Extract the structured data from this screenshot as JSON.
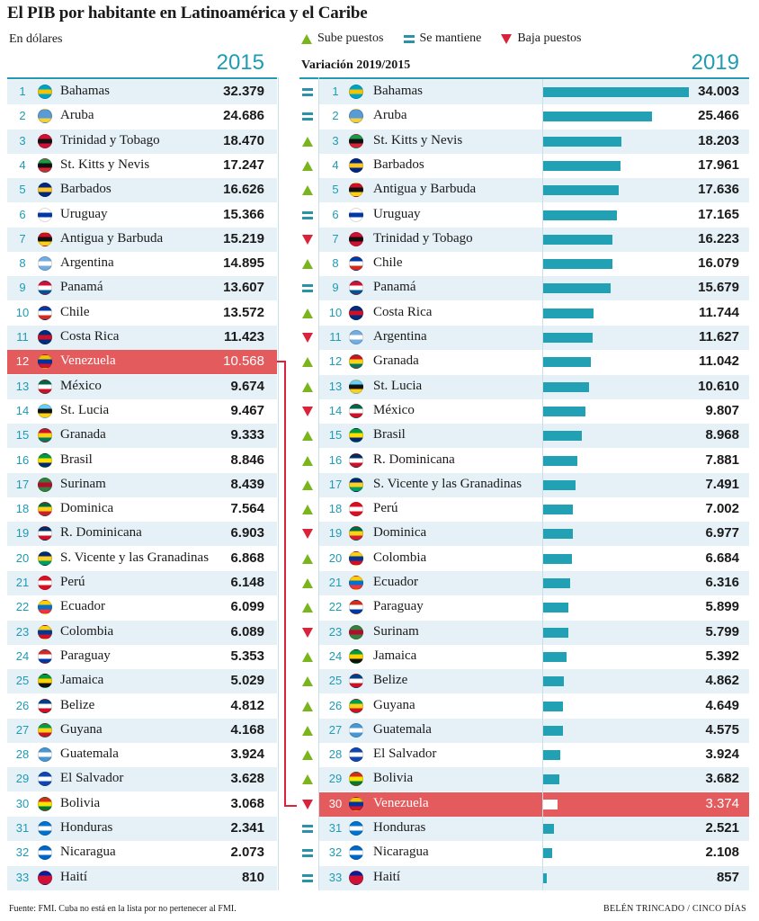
{
  "title": "El PIB por habitante en Latinoamérica y el Caribe",
  "unit": "En dólares",
  "legend": {
    "up": "Sube puestos",
    "same": "Se mantiene",
    "down": "Baja puestos"
  },
  "subhead": "Variación 2019/2015",
  "year_left": "2015",
  "year_right": "2019",
  "footer_left": "Fuente: FMI. Cuba no está en la lista por no pertenecer al FMI.",
  "footer_right": "BELÉN TRINCADO / CINCO DÍAS",
  "colors": {
    "accent": "#1f9bb3",
    "bar": "#22a1b4",
    "highlight": "#e45b5e",
    "up": "#7ab51d",
    "down": "#d8233b"
  },
  "chart_data": {
    "type": "table",
    "highlight_country": "Venezuela",
    "left": [
      {
        "rank": "1",
        "name": "Bahamas",
        "value": "32.379"
      },
      {
        "rank": "2",
        "name": "Aruba",
        "value": "24.686"
      },
      {
        "rank": "3",
        "name": "Trinidad y  Tobago",
        "value": "18.470"
      },
      {
        "rank": "4",
        "name": "St. Kitts y Nevis",
        "value": "17.247"
      },
      {
        "rank": "5",
        "name": "Barbados",
        "value": "16.626"
      },
      {
        "rank": "6",
        "name": "Uruguay",
        "value": "15.366"
      },
      {
        "rank": "7",
        "name": "Antigua y Barbuda",
        "value": "15.219"
      },
      {
        "rank": "8",
        "name": "Argentina",
        "value": "14.895"
      },
      {
        "rank": "9",
        "name": "Panamá",
        "value": "13.607"
      },
      {
        "rank": "10",
        "name": "Chile",
        "value": "13.572"
      },
      {
        "rank": "11",
        "name": "Costa Rica",
        "value": "11.423"
      },
      {
        "rank": "12",
        "name": "Venezuela",
        "value": "10.568"
      },
      {
        "rank": "13",
        "name": "México",
        "value": "9.674"
      },
      {
        "rank": "14",
        "name": "St. Lucia",
        "value": "9.467"
      },
      {
        "rank": "15",
        "name": "Granada",
        "value": "9.333"
      },
      {
        "rank": "16",
        "name": "Brasil",
        "value": "8.846"
      },
      {
        "rank": "17",
        "name": "Surinam",
        "value": "8.439"
      },
      {
        "rank": "18",
        "name": "Dominica",
        "value": "7.564"
      },
      {
        "rank": "19",
        "name": "R. Dominicana",
        "value": "6.903"
      },
      {
        "rank": "20",
        "name": "S. Vicente y las Granadinas",
        "value": "6.868"
      },
      {
        "rank": "21",
        "name": "Perú",
        "value": "6.148"
      },
      {
        "rank": "22",
        "name": "Ecuador",
        "value": "6.099"
      },
      {
        "rank": "23",
        "name": "Colombia",
        "value": "6.089"
      },
      {
        "rank": "24",
        "name": "Paraguay",
        "value": "5.353"
      },
      {
        "rank": "25",
        "name": "Jamaica",
        "value": "5.029"
      },
      {
        "rank": "26",
        "name": "Belize",
        "value": "4.812"
      },
      {
        "rank": "27",
        "name": "Guyana",
        "value": "4.168"
      },
      {
        "rank": "28",
        "name": "Guatemala",
        "value": "3.924"
      },
      {
        "rank": "29",
        "name": "El Salvador",
        "value": "3.628"
      },
      {
        "rank": "30",
        "name": "Bolivia",
        "value": "3.068"
      },
      {
        "rank": "31",
        "name": "Honduras",
        "value": "2.341"
      },
      {
        "rank": "32",
        "name": "Nicaragua",
        "value": "2.073"
      },
      {
        "rank": "33",
        "name": "Haití",
        "value": "810"
      }
    ],
    "right": [
      {
        "rank": "1",
        "name": "Bahamas",
        "value": "34.003",
        "amount": 34003,
        "change": "same"
      },
      {
        "rank": "2",
        "name": "Aruba",
        "value": "25.466",
        "amount": 25466,
        "change": "same"
      },
      {
        "rank": "3",
        "name": "St. Kitts y Nevis",
        "value": "18.203",
        "amount": 18203,
        "change": "up"
      },
      {
        "rank": "4",
        "name": "Barbados",
        "value": "17.961",
        "amount": 17961,
        "change": "up"
      },
      {
        "rank": "5",
        "name": "Antigua y Barbuda",
        "value": "17.636",
        "amount": 17636,
        "change": "up"
      },
      {
        "rank": "6",
        "name": "Uruguay",
        "value": "17.165",
        "amount": 17165,
        "change": "same"
      },
      {
        "rank": "7",
        "name": "Trinidad y  Tobago",
        "value": "16.223",
        "amount": 16223,
        "change": "down"
      },
      {
        "rank": "8",
        "name": "Chile",
        "value": "16.079",
        "amount": 16079,
        "change": "up"
      },
      {
        "rank": "9",
        "name": "Panamá",
        "value": "15.679",
        "amount": 15679,
        "change": "same"
      },
      {
        "rank": "10",
        "name": "Costa Rica",
        "value": "11.744",
        "amount": 11744,
        "change": "up"
      },
      {
        "rank": "11",
        "name": "Argentina",
        "value": "11.627",
        "amount": 11627,
        "change": "down"
      },
      {
        "rank": "12",
        "name": "Granada",
        "value": "11.042",
        "amount": 11042,
        "change": "up"
      },
      {
        "rank": "13",
        "name": "St. Lucia",
        "value": "10.610",
        "amount": 10610,
        "change": "up"
      },
      {
        "rank": "14",
        "name": "México",
        "value": "9.807",
        "amount": 9807,
        "change": "down"
      },
      {
        "rank": "15",
        "name": "Brasil",
        "value": "8.968",
        "amount": 8968,
        "change": "up"
      },
      {
        "rank": "16",
        "name": "R. Dominicana",
        "value": "7.881",
        "amount": 7881,
        "change": "up"
      },
      {
        "rank": "17",
        "name": "S. Vicente y las Granadinas",
        "value": "7.491",
        "amount": 7491,
        "change": "up"
      },
      {
        "rank": "18",
        "name": "Perú",
        "value": "7.002",
        "amount": 7002,
        "change": "up"
      },
      {
        "rank": "19",
        "name": "Dominica",
        "value": "6.977",
        "amount": 6977,
        "change": "down"
      },
      {
        "rank": "20",
        "name": "Colombia",
        "value": "6.684",
        "amount": 6684,
        "change": "up"
      },
      {
        "rank": "21",
        "name": "Ecuador",
        "value": "6.316",
        "amount": 6316,
        "change": "up"
      },
      {
        "rank": "22",
        "name": "Paraguay",
        "value": "5.899",
        "amount": 5899,
        "change": "up"
      },
      {
        "rank": "23",
        "name": "Surinam",
        "value": "5.799",
        "amount": 5799,
        "change": "down"
      },
      {
        "rank": "24",
        "name": "Jamaica",
        "value": "5.392",
        "amount": 5392,
        "change": "up"
      },
      {
        "rank": "25",
        "name": "Belize",
        "value": "4.862",
        "amount": 4862,
        "change": "up"
      },
      {
        "rank": "26",
        "name": "Guyana",
        "value": "4.649",
        "amount": 4649,
        "change": "up"
      },
      {
        "rank": "27",
        "name": "Guatemala",
        "value": "4.575",
        "amount": 4575,
        "change": "up"
      },
      {
        "rank": "28",
        "name": "El Salvador",
        "value": "3.924",
        "amount": 3924,
        "change": "up"
      },
      {
        "rank": "29",
        "name": "Bolivia",
        "value": "3.682",
        "amount": 3682,
        "change": "up"
      },
      {
        "rank": "30",
        "name": "Venezuela",
        "value": "3.374",
        "amount": 3374,
        "change": "down"
      },
      {
        "rank": "31",
        "name": "Honduras",
        "value": "2.521",
        "amount": 2521,
        "change": "same"
      },
      {
        "rank": "32",
        "name": "Nicaragua",
        "value": "2.108",
        "amount": 2108,
        "change": "same"
      },
      {
        "rank": "33",
        "name": "Haití",
        "value": "857",
        "amount": 857,
        "change": "same"
      }
    ],
    "bar_max": 34003
  },
  "flag_colors": {
    "Bahamas": [
      "#00a3c8",
      "#f5c400",
      "#00a3c8"
    ],
    "Aruba": [
      "#5b9bd5",
      "#5b9bd5",
      "#f4d03f"
    ],
    "Trinidad y  Tobago": [
      "#d21034",
      "#111111",
      "#d21034"
    ],
    "St. Kitts y Nevis": [
      "#1b9b48",
      "#111111",
      "#d8233b"
    ],
    "Barbados": [
      "#00267f",
      "#ffc726",
      "#00267f"
    ],
    "Uruguay": [
      "#ffffff",
      "#0038a8",
      "#ffffff"
    ],
    "Antigua y Barbuda": [
      "#ce1126",
      "#111111",
      "#fcd116"
    ],
    "Argentina": [
      "#74acdf",
      "#ffffff",
      "#74acdf"
    ],
    "Panamá": [
      "#d21034",
      "#ffffff",
      "#005293"
    ],
    "Chile": [
      "#0039a6",
      "#ffffff",
      "#d52b1e"
    ],
    "Costa Rica": [
      "#002b7f",
      "#ce1126",
      "#002b7f"
    ],
    "Venezuela": [
      "#f4c300",
      "#0033a0",
      "#cf142b"
    ],
    "México": [
      "#006847",
      "#ffffff",
      "#ce1126"
    ],
    "St. Lucia": [
      "#65cfff",
      "#111111",
      "#fcd116"
    ],
    "Granada": [
      "#ce1126",
      "#fcd116",
      "#007a5e"
    ],
    "Brasil": [
      "#009c3b",
      "#ffdf00",
      "#002776"
    ],
    "Surinam": [
      "#377e3f",
      "#b40a2d",
      "#377e3f"
    ],
    "Dominica": [
      "#006b3f",
      "#fcd116",
      "#d41c30"
    ],
    "R. Dominicana": [
      "#002d62",
      "#ffffff",
      "#ce1126"
    ],
    "S. Vicente y las Granadinas": [
      "#002674",
      "#fcd022",
      "#009e60"
    ],
    "Perú": [
      "#d91023",
      "#ffffff",
      "#d91023"
    ],
    "Ecuador": [
      "#ffd100",
      "#0072ce",
      "#ef3340"
    ],
    "Colombia": [
      "#fcd116",
      "#003893",
      "#ce1126"
    ],
    "Paraguay": [
      "#d52b1e",
      "#ffffff",
      "#0038a8"
    ],
    "Jamaica": [
      "#009b3a",
      "#fed100",
      "#111111"
    ],
    "Belize": [
      "#003f87",
      "#ffffff",
      "#ce1126"
    ],
    "Guyana": [
      "#009e49",
      "#fcd116",
      "#ce1126"
    ],
    "Guatemala": [
      "#4997d0",
      "#ffffff",
      "#4997d0"
    ],
    "El Salvador": [
      "#0f47af",
      "#ffffff",
      "#0f47af"
    ],
    "Bolivia": [
      "#d52b1e",
      "#f9e300",
      "#007934"
    ],
    "Honduras": [
      "#0073cf",
      "#ffffff",
      "#0073cf"
    ],
    "Nicaragua": [
      "#0067c6",
      "#ffffff",
      "#0067c6"
    ],
    "Haití": [
      "#00209f",
      "#d21034",
      "#d21034"
    ]
  }
}
